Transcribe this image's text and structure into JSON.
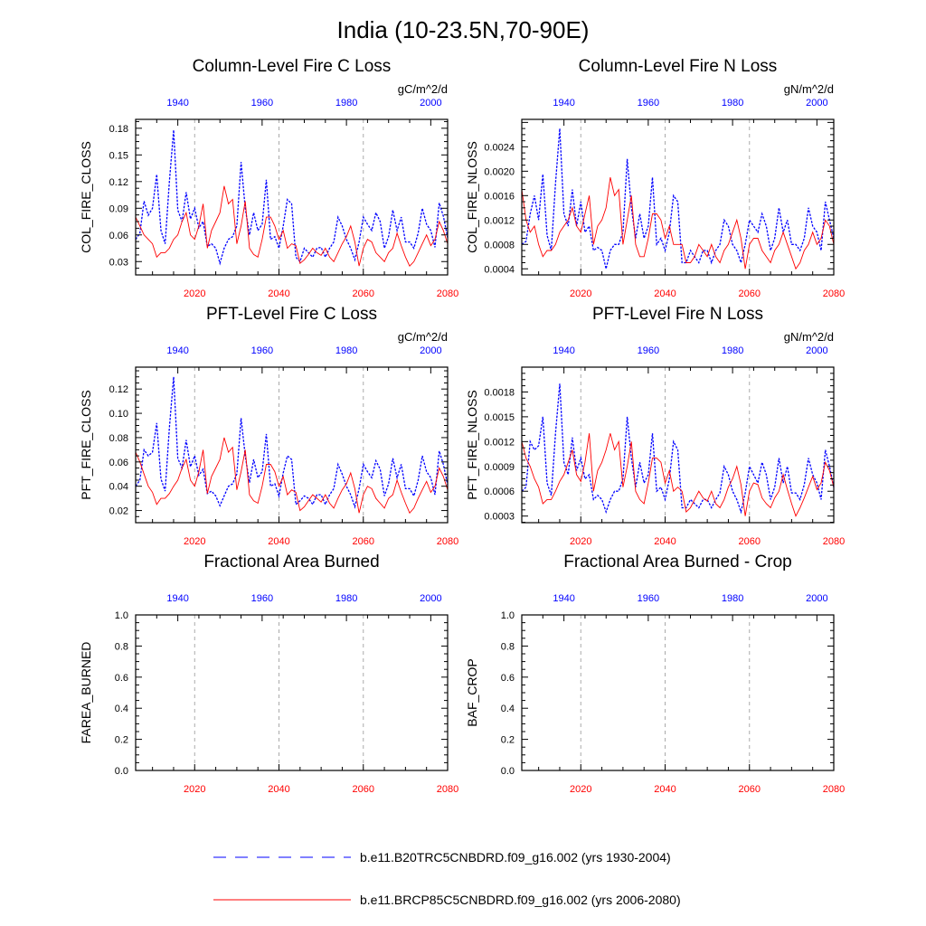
{
  "figure": {
    "title": "India (10-23.5N,70-90E)"
  },
  "colors": {
    "historical": "#0000ff",
    "future": "#ff0000",
    "axis": "#000000",
    "vgrid": "#aaaaaa"
  },
  "legend": {
    "entries": [
      {
        "label": "b.e11.B20TRC5CNBDRD.f09_g16.002 (yrs 1930-2004)",
        "color": "#0000ff",
        "style": "dashed"
      },
      {
        "label": "b.e11.BRCP85C5CNBDRD.f09_g16.002 (yrs 2006-2080)",
        "color": "#ff0000",
        "style": "solid"
      }
    ]
  },
  "chart_data": [
    {
      "type": "line",
      "title": "Column-Level Fire C Loss",
      "units": "gC/m^2/d",
      "ylabel": "COL_FIRE_CLOSS",
      "ylim": [
        0.015,
        0.19
      ],
      "yticks": [
        0.03,
        0.06,
        0.09,
        0.12,
        0.15,
        0.18
      ],
      "ytick_labels": [
        "0.03",
        "0.06",
        "0.09",
        "0.12",
        "0.15",
        "0.18"
      ],
      "x_bottom": {
        "range": [
          2006,
          2080
        ],
        "ticks": [
          2020,
          2040,
          2060,
          2080
        ],
        "color": "#ff0000"
      },
      "x_top": {
        "range": [
          1930,
          2004
        ],
        "ticks": [
          1940,
          1960,
          1980,
          2000
        ],
        "color": "#0000ff"
      },
      "grid": "vertical dashed at 2020, 2040, 2060",
      "series": [
        {
          "name": "b.e11.B20TRC5CNBDRD.f09_g16.002",
          "style": "dashed",
          "color": "#0000ff",
          "x_start": 1930,
          "values": [
            0.055,
            0.062,
            0.098,
            0.082,
            0.09,
            0.128,
            0.065,
            0.05,
            0.12,
            0.178,
            0.088,
            0.075,
            0.108,
            0.078,
            0.09,
            0.068,
            0.075,
            0.047,
            0.05,
            0.045,
            0.028,
            0.045,
            0.055,
            0.058,
            0.07,
            0.142,
            0.09,
            0.06,
            0.085,
            0.065,
            0.072,
            0.122,
            0.055,
            0.058,
            0.045,
            0.07,
            0.1,
            0.095,
            0.035,
            0.03,
            0.045,
            0.04,
            0.035,
            0.045,
            0.046,
            0.035,
            0.045,
            0.052,
            0.08,
            0.07,
            0.055,
            0.045,
            0.032,
            0.052,
            0.08,
            0.072,
            0.065,
            0.085,
            0.075,
            0.045,
            0.058,
            0.088,
            0.065,
            0.08,
            0.052,
            0.052,
            0.045,
            0.062,
            0.09,
            0.072,
            0.065,
            0.046,
            0.096,
            0.081,
            0.057
          ]
        },
        {
          "name": "b.e11.BRCP85C5CNBDRD.f09_g16.002",
          "style": "solid",
          "color": "#ff0000",
          "x_start": 2006,
          "values": [
            0.08,
            0.07,
            0.06,
            0.055,
            0.05,
            0.035,
            0.04,
            0.04,
            0.045,
            0.055,
            0.06,
            0.075,
            0.085,
            0.06,
            0.055,
            0.07,
            0.095,
            0.045,
            0.065,
            0.075,
            0.085,
            0.115,
            0.095,
            0.1,
            0.05,
            0.07,
            0.098,
            0.045,
            0.038,
            0.035,
            0.055,
            0.08,
            0.08,
            0.07,
            0.055,
            0.065,
            0.045,
            0.05,
            0.048,
            0.028,
            0.032,
            0.038,
            0.045,
            0.04,
            0.037,
            0.045,
            0.035,
            0.03,
            0.04,
            0.05,
            0.058,
            0.07,
            0.052,
            0.025,
            0.045,
            0.055,
            0.052,
            0.04,
            0.035,
            0.03,
            0.04,
            0.045,
            0.062,
            0.048,
            0.035,
            0.025,
            0.03,
            0.04,
            0.05,
            0.06,
            0.048,
            0.055,
            0.075,
            0.065,
            0.05
          ]
        }
      ]
    },
    {
      "type": "line",
      "title": "Column-Level Fire N Loss",
      "units": "gN/m^2/d",
      "ylabel": "COL_FIRE_NLOSS",
      "ylim": [
        0.0003,
        0.00285
      ],
      "yticks": [
        0.0004,
        0.0008,
        0.0012,
        0.0016,
        0.002,
        0.0024
      ],
      "ytick_labels": [
        "0.0004",
        "0.0008",
        "0.0012",
        "0.0016",
        "0.0020",
        "0.0024"
      ],
      "x_bottom": {
        "range": [
          2006,
          2080
        ],
        "ticks": [
          2020,
          2040,
          2060,
          2080
        ],
        "color": "#ff0000"
      },
      "x_top": {
        "range": [
          1930,
          2004
        ],
        "ticks": [
          1940,
          1960,
          1980,
          2000
        ],
        "color": "#0000ff"
      },
      "grid": "vertical dashed at 2020, 2040, 2060",
      "series": [
        {
          "name": "b.e11.B20TRC5CNBDRD.f09_g16.002",
          "style": "dashed",
          "color": "#0000ff",
          "x_start": 1930,
          "values": [
            0.0008,
            0.00085,
            0.0013,
            0.0016,
            0.0012,
            0.00195,
            0.00095,
            0.0007,
            0.0018,
            0.0027,
            0.0013,
            0.0011,
            0.0017,
            0.0011,
            0.0015,
            0.001,
            0.0011,
            0.0007,
            0.00075,
            0.0007,
            0.0004,
            0.0007,
            0.0008,
            0.0008,
            0.001,
            0.0022,
            0.0014,
            0.0009,
            0.0013,
            0.0009,
            0.0011,
            0.0019,
            0.0008,
            0.0009,
            0.0007,
            0.001,
            0.0016,
            0.0015,
            0.0005,
            0.0005,
            0.0007,
            0.0006,
            0.0005,
            0.0007,
            0.0007,
            0.0005,
            0.0007,
            0.0008,
            0.0012,
            0.0011,
            0.0008,
            0.0007,
            0.0005,
            0.0008,
            0.0012,
            0.0011,
            0.001,
            0.0013,
            0.0011,
            0.0007,
            0.0009,
            0.0014,
            0.001,
            0.0012,
            0.0008,
            0.0008,
            0.0007,
            0.0009,
            0.0014,
            0.0011,
            0.001,
            0.0007,
            0.0015,
            0.0012,
            0.0009
          ]
        },
        {
          "name": "b.e11.BRCP85C5CNBDRD.f09_g16.002",
          "style": "solid",
          "color": "#ff0000",
          "x_start": 2006,
          "values": [
            0.0017,
            0.0012,
            0.001,
            0.0011,
            0.0008,
            0.0006,
            0.0007,
            0.0007,
            0.0008,
            0.001,
            0.0011,
            0.0012,
            0.0014,
            0.0011,
            0.001,
            0.0013,
            0.0016,
            0.0008,
            0.0011,
            0.0012,
            0.0014,
            0.0019,
            0.0016,
            0.0017,
            0.0008,
            0.0012,
            0.0016,
            0.0008,
            0.0006,
            0.0006,
            0.0009,
            0.0013,
            0.0013,
            0.0012,
            0.0009,
            0.0011,
            0.0008,
            0.0008,
            0.0008,
            0.0005,
            0.0005,
            0.0006,
            0.0008,
            0.0007,
            0.0006,
            0.0008,
            0.0006,
            0.0005,
            0.0007,
            0.0008,
            0.001,
            0.0012,
            0.0009,
            0.0004,
            0.0008,
            0.0009,
            0.0009,
            0.0007,
            0.0006,
            0.0005,
            0.0007,
            0.0008,
            0.001,
            0.0008,
            0.0006,
            0.0004,
            0.0005,
            0.0007,
            0.0008,
            0.001,
            0.0008,
            0.0009,
            0.0012,
            0.0011,
            0.0008
          ]
        }
      ]
    },
    {
      "type": "line",
      "title": "PFT-Level Fire C Loss",
      "units": "gC/m^2/d",
      "ylabel": "PFT_FIRE_CLOSS",
      "ylim": [
        0.01,
        0.138
      ],
      "yticks": [
        0.02,
        0.04,
        0.06,
        0.08,
        0.1,
        0.12
      ],
      "ytick_labels": [
        "0.02",
        "0.04",
        "0.06",
        "0.08",
        "0.10",
        "0.12"
      ],
      "x_bottom": {
        "range": [
          2006,
          2080
        ],
        "ticks": [
          2020,
          2040,
          2060,
          2080
        ],
        "color": "#ff0000"
      },
      "x_top": {
        "range": [
          1930,
          2004
        ],
        "ticks": [
          1940,
          1960,
          1980,
          2000
        ],
        "color": "#0000ff"
      },
      "grid": "vertical dashed at 2020, 2040, 2060",
      "series": [
        {
          "name": "b.e11.B20TRC5CNBDRD.f09_g16.002",
          "style": "dashed",
          "color": "#0000ff",
          "x_start": 1930,
          "values": [
            0.04,
            0.045,
            0.07,
            0.065,
            0.068,
            0.092,
            0.046,
            0.036,
            0.088,
            0.13,
            0.063,
            0.055,
            0.078,
            0.056,
            0.065,
            0.049,
            0.054,
            0.034,
            0.036,
            0.032,
            0.024,
            0.032,
            0.04,
            0.042,
            0.05,
            0.096,
            0.065,
            0.043,
            0.062,
            0.047,
            0.052,
            0.083,
            0.04,
            0.042,
            0.032,
            0.051,
            0.065,
            0.062,
            0.025,
            0.028,
            0.032,
            0.03,
            0.025,
            0.033,
            0.033,
            0.025,
            0.033,
            0.038,
            0.058,
            0.05,
            0.04,
            0.033,
            0.023,
            0.038,
            0.058,
            0.052,
            0.047,
            0.061,
            0.054,
            0.032,
            0.042,
            0.063,
            0.047,
            0.058,
            0.038,
            0.038,
            0.032,
            0.045,
            0.065,
            0.052,
            0.047,
            0.033,
            0.069,
            0.058,
            0.041
          ]
        },
        {
          "name": "b.e11.BRCP85C5CNBDRD.f09_g16.002",
          "style": "solid",
          "color": "#ff0000",
          "x_start": 2006,
          "values": [
            0.068,
            0.06,
            0.05,
            0.04,
            0.035,
            0.025,
            0.03,
            0.03,
            0.034,
            0.04,
            0.045,
            0.055,
            0.062,
            0.045,
            0.04,
            0.052,
            0.07,
            0.034,
            0.048,
            0.055,
            0.062,
            0.08,
            0.068,
            0.072,
            0.037,
            0.052,
            0.07,
            0.033,
            0.028,
            0.026,
            0.04,
            0.058,
            0.058,
            0.052,
            0.04,
            0.048,
            0.033,
            0.037,
            0.035,
            0.02,
            0.023,
            0.028,
            0.033,
            0.03,
            0.027,
            0.033,
            0.026,
            0.022,
            0.03,
            0.037,
            0.042,
            0.051,
            0.038,
            0.018,
            0.033,
            0.04,
            0.038,
            0.03,
            0.026,
            0.022,
            0.03,
            0.033,
            0.045,
            0.035,
            0.026,
            0.018,
            0.022,
            0.03,
            0.037,
            0.044,
            0.035,
            0.04,
            0.055,
            0.048,
            0.037
          ]
        }
      ]
    },
    {
      "type": "line",
      "title": "PFT-Level Fire N Loss",
      "units": "gN/m^2/d",
      "ylabel": "PFT_FIRE_NLOSS",
      "ylim": [
        0.00022,
        0.0021
      ],
      "yticks": [
        0.0003,
        0.0006,
        0.0009,
        0.0012,
        0.0015,
        0.0018
      ],
      "ytick_labels": [
        "0.0003",
        "0.0006",
        "0.0009",
        "0.0012",
        "0.0015",
        "0.0018"
      ],
      "x_bottom": {
        "range": [
          2006,
          2080
        ],
        "ticks": [
          2020,
          2040,
          2060,
          2080
        ],
        "color": "#ff0000"
      },
      "x_top": {
        "range": [
          1930,
          2004
        ],
        "ticks": [
          1940,
          1960,
          1980,
          2000
        ],
        "color": "#0000ff"
      },
      "grid": "vertical dashed at 2020, 2040, 2060",
      "series": [
        {
          "name": "b.e11.B20TRC5CNBDRD.f09_g16.002",
          "style": "dashed",
          "color": "#0000ff",
          "x_start": 1930,
          "values": [
            0.0006,
            0.00065,
            0.0012,
            0.0011,
            0.00115,
            0.0015,
            0.0007,
            0.00055,
            0.0013,
            0.0019,
            0.00095,
            0.0008,
            0.00125,
            0.00085,
            0.001,
            0.00075,
            0.0008,
            0.0005,
            0.00055,
            0.0005,
            0.00035,
            0.0005,
            0.0006,
            0.0006,
            0.00075,
            0.0015,
            0.001,
            0.00065,
            0.00095,
            0.0007,
            0.0008,
            0.0013,
            0.0006,
            0.00065,
            0.0005,
            0.00075,
            0.0012,
            0.0011,
            0.0004,
            0.0004,
            0.0005,
            0.00045,
            0.0004,
            0.0005,
            0.0005,
            0.0004,
            0.0005,
            0.00058,
            0.0009,
            0.0008,
            0.0006,
            0.0005,
            0.00035,
            0.00058,
            0.0009,
            0.0008,
            0.0007,
            0.00095,
            0.0008,
            0.0005,
            0.00065,
            0.001,
            0.0007,
            0.0009,
            0.00058,
            0.00058,
            0.0005,
            0.00068,
            0.001,
            0.0008,
            0.0007,
            0.0005,
            0.0011,
            0.0009,
            0.00065
          ]
        },
        {
          "name": "b.e11.BRCP85C5CNBDRD.f09_g16.002",
          "style": "solid",
          "color": "#ff0000",
          "x_start": 2006,
          "values": [
            0.0012,
            0.001,
            0.0009,
            0.00075,
            0.00065,
            0.00045,
            0.0005,
            0.0005,
            0.0006,
            0.00072,
            0.0008,
            0.00095,
            0.0011,
            0.0008,
            0.00072,
            0.00095,
            0.0013,
            0.0006,
            0.00085,
            0.00095,
            0.0011,
            0.0013,
            0.0011,
            0.0012,
            0.00065,
            0.0009,
            0.0012,
            0.0006,
            0.0005,
            0.00045,
            0.0007,
            0.001,
            0.001,
            0.00095,
            0.0007,
            0.00085,
            0.0006,
            0.00065,
            0.0006,
            0.00035,
            0.0004,
            0.0005,
            0.0006,
            0.00052,
            0.00048,
            0.0006,
            0.00045,
            0.0004,
            0.0005,
            0.00065,
            0.00075,
            0.0009,
            0.00068,
            0.0003,
            0.0006,
            0.0007,
            0.00068,
            0.00052,
            0.00045,
            0.0004,
            0.00052,
            0.0006,
            0.0008,
            0.00062,
            0.00045,
            0.0003,
            0.0004,
            0.00052,
            0.00065,
            0.00078,
            0.00062,
            0.0007,
            0.00095,
            0.00085,
            0.00065
          ]
        }
      ]
    },
    {
      "type": "line",
      "title": "Fractional Area Burned",
      "units": "",
      "ylabel": "FAREA_BURNED",
      "ylim": [
        0,
        1
      ],
      "yticks": [
        0,
        0.2,
        0.4,
        0.6,
        0.8,
        1.0
      ],
      "ytick_labels": [
        "0.0",
        "0.2",
        "0.4",
        "0.6",
        "0.8",
        "1.0"
      ],
      "x_bottom": {
        "range": [
          2006,
          2080
        ],
        "ticks": [
          2020,
          2040,
          2060,
          2080
        ],
        "color": "#ff0000"
      },
      "x_top": {
        "range": [
          1930,
          2004
        ],
        "ticks": [
          1940,
          1960,
          1980,
          2000
        ],
        "color": "#0000ff"
      },
      "grid": "vertical dashed at 2020, 2040, 2060",
      "series": []
    },
    {
      "type": "line",
      "title": "Fractional Area Burned - Crop",
      "units": "",
      "ylabel": "BAF_CROP",
      "ylim": [
        0,
        1
      ],
      "yticks": [
        0,
        0.2,
        0.4,
        0.6,
        0.8,
        1.0
      ],
      "ytick_labels": [
        "0.0",
        "0.2",
        "0.4",
        "0.6",
        "0.8",
        "1.0"
      ],
      "x_bottom": {
        "range": [
          2006,
          2080
        ],
        "ticks": [
          2020,
          2040,
          2060,
          2080
        ],
        "color": "#ff0000"
      },
      "x_top": {
        "range": [
          1930,
          2004
        ],
        "ticks": [
          1940,
          1960,
          1980,
          2000
        ],
        "color": "#0000ff"
      },
      "grid": "vertical dashed at 2020, 2040, 2060",
      "series": []
    }
  ]
}
